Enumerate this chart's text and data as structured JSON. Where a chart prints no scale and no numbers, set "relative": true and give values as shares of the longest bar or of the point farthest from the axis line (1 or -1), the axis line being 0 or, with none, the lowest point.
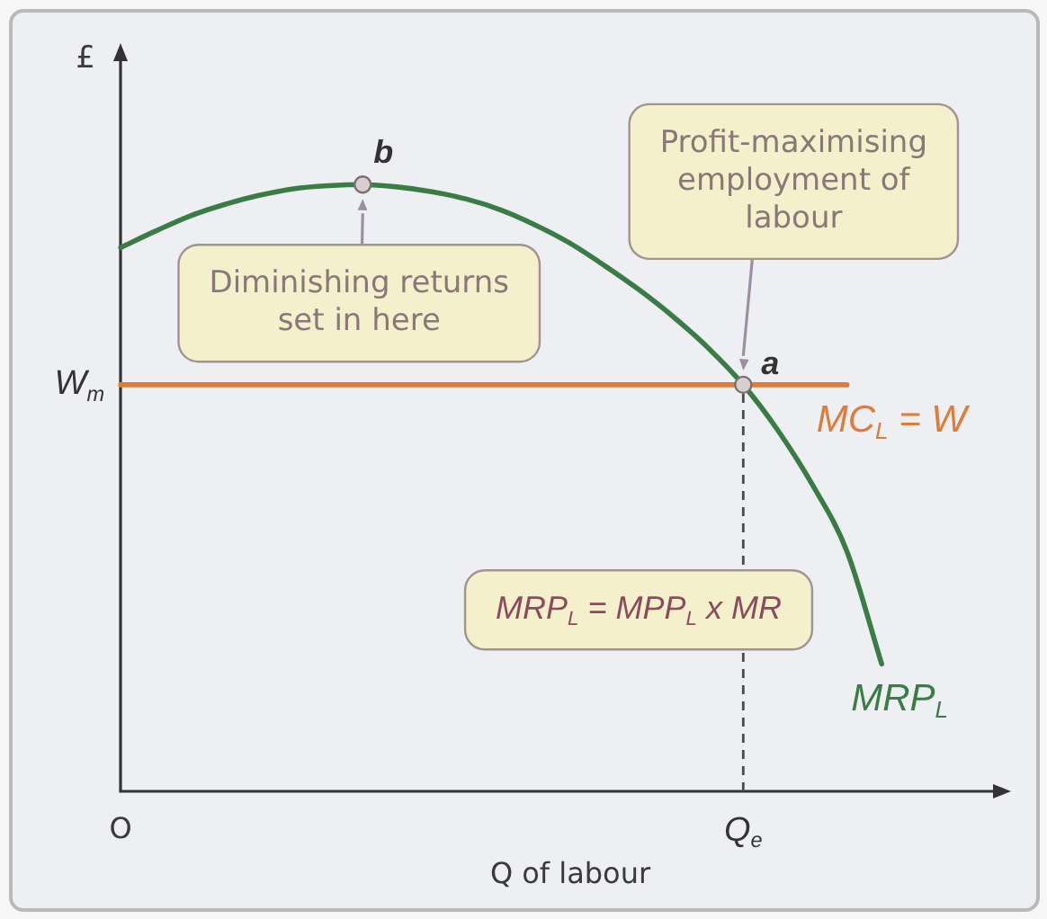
{
  "chart_data": {
    "type": "line",
    "relative": true,
    "ylabel": "£",
    "xlabel": "Q of labour",
    "categories": [
      "O",
      null,
      null,
      null,
      null,
      null,
      null,
      null,
      null,
      null,
      null,
      null,
      null,
      null,
      null,
      null,
      null,
      null,
      "Q$_{e}$",
      null,
      null,
      null,
      null,
      null,
      null,
      null,
      null
    ],
    "series": [
      {
        "name": "MRP$_{L}$",
        "color": "#3a7d44",
        "values": [
          0.896,
          0.923,
          0.948,
          0.967,
          0.982,
          0.993,
          0.998,
          1,
          0.996,
          0.988,
          0.976,
          0.958,
          0.933,
          0.903,
          0.866,
          0.826,
          0.781,
          0.73,
          0.67,
          0.595,
          0.505,
          0.395,
          0.21,
          null,
          null,
          null,
          null
        ]
      },
      {
        "name": "MC$_{L}$ = W",
        "color": "#e07b39",
        "values": [
          0.67,
          0.67,
          0.67,
          0.67,
          0.67,
          0.67,
          0.67,
          0.67,
          0.67,
          0.67,
          0.67,
          0.67,
          0.67,
          0.67,
          0.67,
          0.67,
          0.67,
          0.67,
          0.67,
          0.67,
          0.67,
          0.67,
          null,
          null,
          null,
          null,
          null
        ]
      }
    ],
    "ref_lines": [
      {
        "axis": "x",
        "value": "Q$_{e}$",
        "color": "#4a4a4a",
        "line_style": "dashed"
      }
    ],
    "annotations": [
      {
        "text": "b",
        "y": 1
      },
      {
        "text": "a",
        "x": "Q$_{e}$",
        "y": 0.67
      },
      {
        "text": "Diminishing returns set in here",
        "y": 1
      },
      "Profit-maximising employment of labour",
      "W$_{m}$",
      "MRP$_{L}$ = MPP$_{L}$ x MR"
    ]
  }
}
